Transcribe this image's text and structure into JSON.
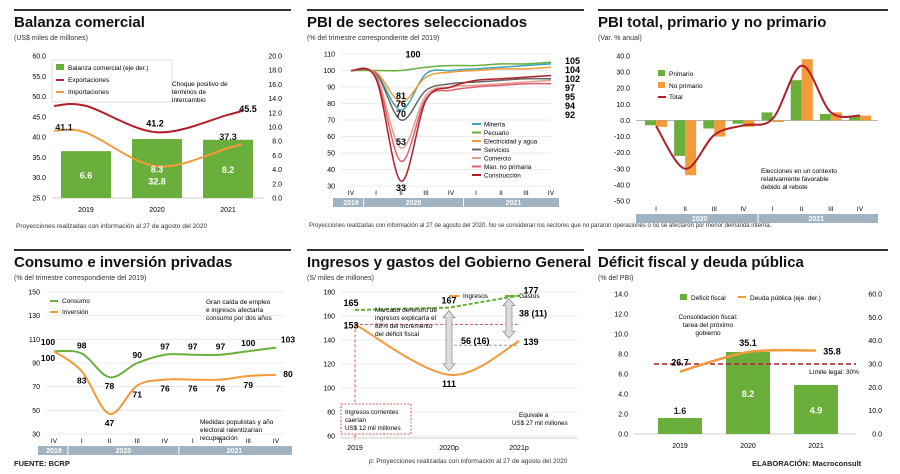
{
  "colors": {
    "green": "#6aaf3c",
    "orange": "#f39a3a",
    "darkred": "#b01e2a",
    "teal": "#3aa7b8",
    "band": "#9fb3c2",
    "grid": "#d8d8d8"
  },
  "footer": {
    "source": "FUENTE: BCRP",
    "elaboration": "ELABORACIÓN: Macroconsult"
  },
  "p1": {
    "title": "Balanza comercial",
    "subtitle": "(US$ miles de millones)",
    "note": "Proyecciones realizadas con información al 27 de agosto del 2020",
    "annotation": [
      "Choque positivo de",
      "términos de",
      "intercambio"
    ],
    "chart_data": {
      "type": "bar",
      "categories": [
        "2019",
        "2020",
        "2021"
      ],
      "series": [
        {
          "name": "Balanza comercial (eje der.)",
          "type": "bar",
          "axis": "right",
          "values": [
            6.6,
            8.3,
            8.2
          ]
        },
        {
          "name": "Exportaciones",
          "type": "line",
          "axis": "left",
          "values": [
            47.7,
            41.2,
            45.5
          ]
        },
        {
          "name": "Importaciones",
          "type": "line",
          "axis": "left",
          "values": [
            41.1,
            32.8,
            37.3
          ]
        }
      ],
      "yleft": {
        "min": 25,
        "max": 60,
        "ticks": [
          "60.0",
          "55.0",
          "50.0",
          "45.0",
          "40.0",
          "35.0",
          "30.0",
          "25.0"
        ]
      },
      "yright": {
        "min": 0,
        "max": 20,
        "ticks": [
          "20.0",
          "18.0",
          "16.0",
          "14.0",
          "12.0",
          "10.0",
          "8.0",
          "6.0",
          "4.0",
          "2.0",
          "0.0"
        ]
      },
      "labels": {
        "exp": [
          "47.7",
          "41.2",
          "45.5"
        ],
        "imp": [
          "41.1",
          "32.8",
          "37.3"
        ],
        "bar": [
          "6.6",
          "8.3",
          "8.2"
        ]
      }
    }
  },
  "p2": {
    "title": "PBI de sectores seleccionados",
    "subtitle": "(% del trimestre correspondiente del 2019)",
    "note": "Proyecciones realizadas con información al 27 de agosto del 2020. No se consideran los sectores que no pararon operaciones o no se afectaron por menor demanda interna.",
    "chart_data": {
      "type": "line",
      "x": [
        "IV",
        "I",
        "II",
        "III",
        "IV",
        "I",
        "II",
        "III",
        "IV"
      ],
      "years": [
        "2019",
        "2020",
        "2021"
      ],
      "y": {
        "min": 30,
        "max": 110,
        "ticks": [
          "110",
          "100",
          "90",
          "80",
          "70",
          "60",
          "50",
          "40",
          "30"
        ]
      },
      "series": [
        {
          "name": "Minería",
          "color": "#3aa7b8",
          "values": [
            100,
            98,
            76,
            98,
            100,
            101,
            102,
            103,
            104
          ]
        },
        {
          "name": "Pecuario",
          "color": "#6aaf3c",
          "values": [
            100,
            100,
            100,
            102,
            103,
            103,
            104,
            104,
            105
          ]
        },
        {
          "name": "Electricidad y agua",
          "color": "#f39a3a",
          "values": [
            100,
            99,
            81,
            96,
            99,
            100,
            101,
            101,
            102
          ]
        },
        {
          "name": "Servicios",
          "color": "#666666",
          "values": [
            100,
            98,
            70,
            88,
            92,
            93,
            94,
            95,
            95
          ]
        },
        {
          "name": "Comercio",
          "color": "#e0a090",
          "values": [
            100,
            97,
            53,
            85,
            90,
            91,
            92,
            93,
            94
          ]
        },
        {
          "name": "Man. no primaria",
          "color": "#e06070",
          "values": [
            100,
            96,
            45,
            83,
            88,
            90,
            91,
            92,
            92
          ]
        },
        {
          "name": "Construcción",
          "color": "#b01e2a",
          "values": [
            100,
            95,
            33,
            82,
            90,
            94,
            95,
            96,
            97
          ]
        }
      ],
      "point_labels": [
        "100",
        "81",
        "76",
        "70",
        "53",
        "33"
      ],
      "end_labels": [
        "105",
        "104",
        "102",
        "97",
        "95",
        "94",
        "92"
      ]
    }
  },
  "p3": {
    "title": "PBI total, primario y no primario",
    "subtitle": "(Var. % anual)",
    "annotation": [
      "Elecciones en un contexto",
      "relativamente favorable",
      "debido al rebote"
    ],
    "chart_data": {
      "type": "bar",
      "x": [
        "I",
        "II",
        "III",
        "IV",
        "I",
        "II",
        "III",
        "IV"
      ],
      "years": [
        "2020",
        "2021"
      ],
      "y": {
        "min": -50,
        "max": 40,
        "ticks": [
          "40.0",
          "30.0",
          "20.0",
          "10.0",
          "0.0",
          "-10.0",
          "-20.0",
          "-30.0",
          "-40.0",
          "-50.0"
        ]
      },
      "series": [
        {
          "name": "Primario",
          "color": "#6aaf3c",
          "values": [
            -3,
            -22,
            -5,
            -2,
            5,
            25,
            4,
            3
          ]
        },
        {
          "name": "No primario",
          "color": "#f39a3a",
          "values": [
            -4,
            -34,
            -10,
            -4,
            -1,
            38,
            5,
            3
          ]
        },
        {
          "name": "Total",
          "color": "#b01e2a",
          "values": [
            -3.5,
            -30,
            -9,
            -3,
            1,
            34,
            5,
            3
          ]
        }
      ]
    }
  },
  "p4": {
    "title": "Consumo e inversión privadas",
    "subtitle": "(% del trimestre correspondiente del 2019)",
    "ann_top": [
      "Gran caída de empleo",
      "e ingresos afectaría",
      "consumo por dos años"
    ],
    "ann_bot": [
      "Medidas populistas y año",
      "electoral ralentizarían",
      "recuperación"
    ],
    "chart_data": {
      "type": "line",
      "x": [
        "IV",
        "I",
        "II",
        "III",
        "IV",
        "I",
        "II",
        "III",
        "IV"
      ],
      "years": [
        "2019",
        "2020",
        "2021"
      ],
      "y": {
        "min": 30,
        "max": 150,
        "ticks": [
          "150",
          "130",
          "110",
          "90",
          "70",
          "50",
          "30"
        ]
      },
      "series": [
        {
          "name": "Consumo",
          "color": "#6aaf3c",
          "values": [
            100,
            98,
            78,
            90,
            97,
            97,
            97,
            100,
            103
          ]
        },
        {
          "name": "Inversión",
          "color": "#f39a3a",
          "values": [
            100,
            83,
            47,
            71,
            76,
            76,
            76,
            79,
            80
          ]
        }
      ],
      "labels": {
        "cons": [
          "100",
          "98",
          "78",
          "90",
          "97",
          "97",
          "97",
          "100",
          "103"
        ],
        "inv": [
          "100",
          "83",
          "47",
          "71",
          "76",
          "76",
          "76",
          "79",
          "80"
        ]
      }
    }
  },
  "p5": {
    "title": "Ingresos y gastos del Gobierno General",
    "subtitle": "(S/ miles de millones)",
    "note": "p: Proyecciones realizadas con información al 27 de agosto del 2020",
    "ann_top": [
      "Marcado dererioro de",
      "ingresos explicaría el",
      "88% del incremento",
      "del déficit fiscal"
    ],
    "ann_left": [
      "Ingresos corrientes",
      "caerían",
      "US$ 12 mil millones"
    ],
    "ann_right": [
      "Equivale a",
      "US$ 27 mil millones"
    ],
    "chart_data": {
      "type": "line",
      "categories": [
        "2019",
        "2020p",
        "2021p"
      ],
      "y": {
        "min": 60,
        "max": 180,
        "ticks": [
          "180",
          "160",
          "140",
          "120",
          "100",
          "80",
          "60"
        ]
      },
      "series": [
        {
          "name": "Ingresos",
          "color": "#f39a3a",
          "values": [
            153,
            111,
            139
          ]
        },
        {
          "name": "Gastos",
          "color": "#6aaf3c",
          "values": [
            165,
            167,
            177
          ]
        }
      ],
      "labels": {
        "ing": [
          "153",
          "111",
          "139"
        ],
        "gas": [
          "165",
          "167",
          "177"
        ],
        "gap2020": "56 (16)",
        "gap2021": "38 (11)"
      }
    }
  },
  "p6": {
    "title": "Déficit fiscal y deuda pública",
    "subtitle": "(% del PBI)",
    "ann": [
      "Consolidación fiscal:",
      "tarea del próximo",
      "gobierno"
    ],
    "limit_label": "Límite legal: 30%",
    "chart_data": {
      "type": "bar",
      "categories": [
        "2019",
        "2020",
        "2021"
      ],
      "series": [
        {
          "name": "Déficit fiscal",
          "type": "bar",
          "axis": "left",
          "values": [
            1.6,
            8.2,
            4.9
          ]
        },
        {
          "name": "Deuda pública (eje. der.)",
          "type": "line",
          "axis": "right",
          "values": [
            26.7,
            35.1,
            35.8
          ]
        }
      ],
      "yleft": {
        "min": 0,
        "max": 14,
        "ticks": [
          "14.0",
          "12.0",
          "10.0",
          "8.0",
          "6.0",
          "4.0",
          "2.0",
          "0.0"
        ]
      },
      "yright": {
        "min": 0,
        "max": 60,
        "ticks": [
          "60.0",
          "50.0",
          "40.0",
          "30.0",
          "20.0",
          "10.0",
          "0.0"
        ]
      },
      "limit": 30,
      "labels": {
        "bar": [
          "1.6",
          "8.2",
          "4.9"
        ],
        "debt": [
          "26.7",
          "35.1",
          "35.8"
        ]
      }
    }
  }
}
